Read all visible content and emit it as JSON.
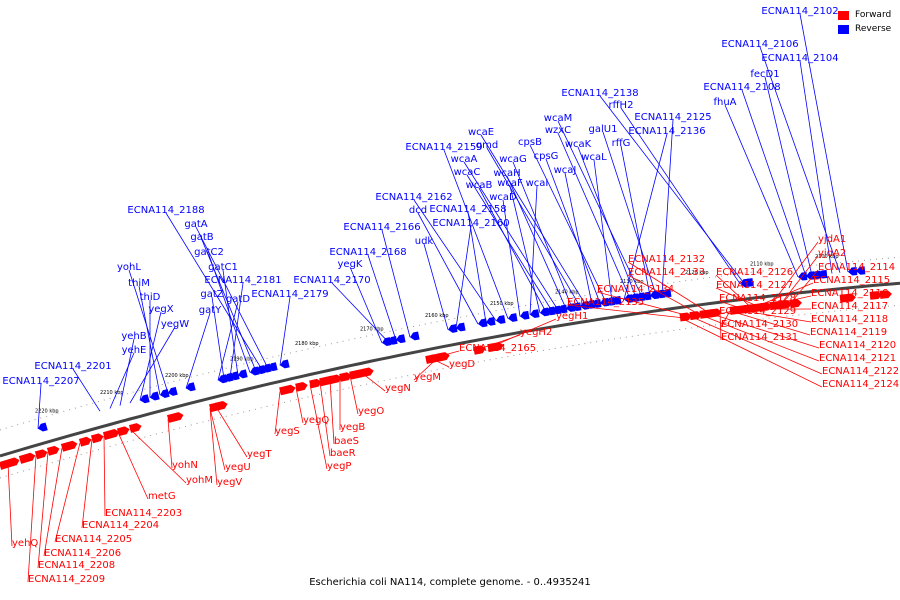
{
  "caption": "Escherichia coli NA114, complete genome. - 0..4935241",
  "legend": [
    {
      "label": "Forward",
      "color": "#ff0000"
    },
    {
      "label": "Reverse",
      "color": "#0000ff"
    }
  ],
  "colors": {
    "forward": "#ff0000",
    "reverse": "#0000ff",
    "axis": "#444444"
  },
  "ticks": [
    "2100 kbp",
    "2110 kbp",
    "2120 kbp",
    "2130 kbp",
    "2140 kbp",
    "2150 kbp",
    "2160 kbp",
    "2170 kbp",
    "2180 kbp",
    "2190 kbp",
    "2200 kbp",
    "2210 kbp",
    "2220 kbp"
  ],
  "reverse_labels": [
    "ECNA114_2102",
    "ECNA114_2106",
    "ECNA114_2104",
    "fecD1",
    "ECNA114_2108",
    "fhuA",
    "ECNA114_2138",
    "rffH2",
    "galU1",
    "rffG",
    "ECNA114_2125",
    "ECNA114_2136",
    "wcaM",
    "wzxC",
    "wcaK",
    "wcaL",
    "cpsB",
    "cpsG",
    "wcaJ",
    "wcaE",
    "gmd",
    "wcaG",
    "wcaH",
    "wcaA",
    "wcaC",
    "wcaB",
    "wcaF",
    "wcaI",
    "wcaD",
    "ECNA114_2159",
    "ECNA114_2162",
    "ECNA114_2158",
    "dcd",
    "ECNA114_2160",
    "udk",
    "ECNA114_2166",
    "ECNA114_2168",
    "yegK",
    "ECNA114_2170",
    "ECNA114_2179",
    "ECNA114_2188",
    "gatA",
    "gatB",
    "gatC2",
    "gatC1",
    "ECNA114_2181",
    "gatZ",
    "gatD",
    "gatY",
    "yohL",
    "thiM",
    "thiD",
    "yegX",
    "yegW",
    "yehB",
    "yehE",
    "ECNA114_2201",
    "ECNA114_2207"
  ],
  "forward_labels": [
    "yjdA1",
    "yjdA2",
    "ECNA114_2114",
    "ECNA114_2115",
    "ECNA114_2116",
    "ECNA114_2117",
    "ECNA114_2118",
    "ECNA114_2119",
    "ECNA114_2120",
    "ECNA114_2121",
    "ECNA114_2122",
    "ECNA114_2124",
    "ECNA114_2126",
    "ECNA114_2127",
    "ECNA114_2128",
    "ECNA114_2129",
    "ECNA114_2130",
    "ECNA114_2131",
    "ECNA114_2132",
    "ECNA114_2133",
    "ECNA114_2134",
    "ECNA114_2135",
    "yegH1",
    "yegH2",
    "ECNA114_2165",
    "yegD",
    "yegM",
    "yegN",
    "yegO",
    "yegB",
    "baeS",
    "baeR",
    "yegP",
    "yegQ",
    "yegS",
    "yegT",
    "yegU",
    "yegV",
    "yohN",
    "yohM",
    "metG",
    "ECNA114_2203",
    "ECNA114_2204",
    "ECNA114_2205",
    "ECNA114_2206",
    "ECNA114_2208",
    "ECNA114_2209",
    "yehQ"
  ]
}
